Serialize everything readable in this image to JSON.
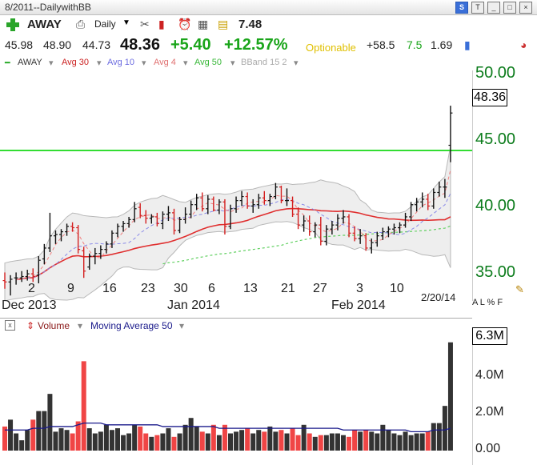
{
  "window": {
    "title": "8/2011--DailywithBB"
  },
  "toolbar": {
    "symbol": "AWAY",
    "period": "Daily",
    "small_value": "7.48"
  },
  "quote": {
    "open": "45.98",
    "high": "48.90",
    "low": "44.73",
    "last": "48.36",
    "change": "+5.40",
    "change_pct": "+12.57%",
    "optionable": "Optionable",
    "v1": "+58.5",
    "v2": "7.5",
    "v3": "1.69"
  },
  "legend": {
    "symbol": "AWAY",
    "avg30": "Avg 30",
    "avg10": "Avg 10",
    "avg4": "Avg 4",
    "avg50": "Avg 50",
    "bband": "BBand 15 2"
  },
  "colors": {
    "up": "#111111",
    "down": "#d42020",
    "vol_red": "#f04545",
    "avg30": "#e03030",
    "avg10": "#8a8ae8",
    "avg4": "#f08080",
    "avg50": "#60d060",
    "hline": "#33dd33",
    "axis_green": "#0c7c1c"
  },
  "price_axis": {
    "labels": [
      "50.00",
      "45.00",
      "40.00",
      "35.00"
    ],
    "current": "48.36",
    "hline": 45.6
  },
  "date_axis": {
    "days": [
      "2",
      "9",
      "16",
      "23",
      "30",
      "6",
      "13",
      "21",
      "27",
      "3",
      "10"
    ],
    "months": [
      "Dec 2013",
      "Jan 2014",
      "Feb 2014"
    ],
    "last_date": "2/20/14",
    "alpf": "A L % F"
  },
  "volume": {
    "label": "Volume",
    "ma_label": "Moving Average 50",
    "close_box": "x",
    "axis_labels": [
      "4.0M",
      "2.0M",
      "0.00"
    ],
    "current": "6.3M"
  },
  "chart_data": {
    "type": "candlestick",
    "x_axis": "date",
    "y_range": [
      34.5,
      51.5
    ],
    "bars": [
      {
        "o": 36.0,
        "h": 36.6,
        "l": 35.4,
        "c": 35.9
      },
      {
        "o": 35.9,
        "h": 36.4,
        "l": 34.9,
        "c": 36.1
      },
      {
        "o": 36.2,
        "h": 36.6,
        "l": 35.7,
        "c": 36.2
      },
      {
        "o": 36.2,
        "h": 36.7,
        "l": 35.9,
        "c": 36.3
      },
      {
        "o": 36.3,
        "h": 36.8,
        "l": 36.0,
        "c": 36.5
      },
      {
        "o": 36.5,
        "h": 36.9,
        "l": 35.9,
        "c": 36.3
      },
      {
        "o": 36.4,
        "h": 37.8,
        "l": 35.8,
        "c": 37.5
      },
      {
        "o": 37.6,
        "h": 38.7,
        "l": 37.2,
        "c": 38.4
      },
      {
        "o": 38.4,
        "h": 41.0,
        "l": 38.1,
        "c": 39.3
      },
      {
        "o": 39.3,
        "h": 39.7,
        "l": 38.7,
        "c": 39.4
      },
      {
        "o": 39.4,
        "h": 39.8,
        "l": 38.9,
        "c": 39.6
      },
      {
        "o": 39.6,
        "h": 40.2,
        "l": 39.3,
        "c": 40.0
      },
      {
        "o": 40.0,
        "h": 40.3,
        "l": 39.6,
        "c": 39.9
      },
      {
        "o": 39.9,
        "h": 40.1,
        "l": 38.0,
        "c": 38.3
      },
      {
        "o": 38.2,
        "h": 38.5,
        "l": 36.2,
        "c": 36.7
      },
      {
        "o": 37.0,
        "h": 38.0,
        "l": 36.8,
        "c": 37.8
      },
      {
        "o": 37.8,
        "h": 38.4,
        "l": 37.2,
        "c": 38.0
      },
      {
        "o": 38.0,
        "h": 38.6,
        "l": 37.6,
        "c": 38.3
      },
      {
        "o": 38.3,
        "h": 38.9,
        "l": 38.0,
        "c": 38.7
      },
      {
        "o": 38.7,
        "h": 39.7,
        "l": 38.4,
        "c": 39.5
      },
      {
        "o": 39.5,
        "h": 40.2,
        "l": 39.2,
        "c": 40.0
      },
      {
        "o": 40.0,
        "h": 40.4,
        "l": 39.6,
        "c": 40.2
      },
      {
        "o": 40.2,
        "h": 40.7,
        "l": 39.9,
        "c": 40.5
      },
      {
        "o": 40.5,
        "h": 41.8,
        "l": 40.3,
        "c": 41.3
      },
      {
        "o": 41.4,
        "h": 41.7,
        "l": 40.6,
        "c": 40.8
      },
      {
        "o": 40.8,
        "h": 41.2,
        "l": 40.2,
        "c": 40.6
      },
      {
        "o": 40.6,
        "h": 40.9,
        "l": 40.2,
        "c": 40.7
      },
      {
        "o": 40.7,
        "h": 41.0,
        "l": 40.0,
        "c": 40.2
      },
      {
        "o": 40.2,
        "h": 41.1,
        "l": 39.8,
        "c": 40.9
      },
      {
        "o": 40.9,
        "h": 41.5,
        "l": 40.4,
        "c": 41.0
      },
      {
        "o": 41.0,
        "h": 41.3,
        "l": 39.4,
        "c": 39.7
      },
      {
        "o": 39.7,
        "h": 40.7,
        "l": 39.5,
        "c": 40.5
      },
      {
        "o": 40.5,
        "h": 41.4,
        "l": 40.2,
        "c": 40.9
      },
      {
        "o": 40.9,
        "h": 41.9,
        "l": 40.6,
        "c": 41.6
      },
      {
        "o": 41.6,
        "h": 42.4,
        "l": 41.2,
        "c": 42.1
      },
      {
        "o": 42.1,
        "h": 42.5,
        "l": 41.1,
        "c": 41.3
      },
      {
        "o": 41.3,
        "h": 42.3,
        "l": 40.9,
        "c": 42.0
      },
      {
        "o": 42.0,
        "h": 42.2,
        "l": 41.1,
        "c": 41.2
      },
      {
        "o": 41.2,
        "h": 42.0,
        "l": 40.9,
        "c": 41.8
      },
      {
        "o": 41.8,
        "h": 42.0,
        "l": 39.4,
        "c": 40.0
      },
      {
        "o": 40.0,
        "h": 41.6,
        "l": 39.8,
        "c": 41.3
      },
      {
        "o": 41.3,
        "h": 42.2,
        "l": 41.0,
        "c": 41.9
      },
      {
        "o": 41.9,
        "h": 42.6,
        "l": 41.5,
        "c": 42.2
      },
      {
        "o": 42.2,
        "h": 42.5,
        "l": 41.3,
        "c": 41.5
      },
      {
        "o": 41.5,
        "h": 42.0,
        "l": 41.0,
        "c": 41.6
      },
      {
        "o": 41.6,
        "h": 42.4,
        "l": 41.3,
        "c": 42.1
      },
      {
        "o": 42.1,
        "h": 42.6,
        "l": 41.6,
        "c": 41.9
      },
      {
        "o": 41.9,
        "h": 42.4,
        "l": 41.5,
        "c": 42.2
      },
      {
        "o": 42.2,
        "h": 43.2,
        "l": 42.0,
        "c": 42.9
      },
      {
        "o": 42.9,
        "h": 43.0,
        "l": 41.7,
        "c": 41.9
      },
      {
        "o": 41.9,
        "h": 42.8,
        "l": 41.5,
        "c": 41.9
      },
      {
        "o": 41.9,
        "h": 42.2,
        "l": 40.7,
        "c": 40.9
      },
      {
        "o": 40.9,
        "h": 41.4,
        "l": 39.8,
        "c": 40.1
      },
      {
        "o": 40.1,
        "h": 40.8,
        "l": 39.6,
        "c": 40.4
      },
      {
        "o": 40.4,
        "h": 40.8,
        "l": 39.3,
        "c": 39.6
      },
      {
        "o": 39.6,
        "h": 40.3,
        "l": 39.2,
        "c": 40.1
      },
      {
        "o": 40.1,
        "h": 40.7,
        "l": 38.6,
        "c": 38.9
      },
      {
        "o": 38.9,
        "h": 40.1,
        "l": 38.6,
        "c": 39.8
      },
      {
        "o": 39.8,
        "h": 40.4,
        "l": 39.4,
        "c": 40.1
      },
      {
        "o": 40.1,
        "h": 40.9,
        "l": 39.7,
        "c": 40.6
      },
      {
        "o": 40.6,
        "h": 41.2,
        "l": 40.2,
        "c": 40.7
      },
      {
        "o": 40.7,
        "h": 40.9,
        "l": 39.2,
        "c": 39.5
      },
      {
        "o": 39.5,
        "h": 40.0,
        "l": 38.9,
        "c": 39.1
      },
      {
        "o": 39.1,
        "h": 39.8,
        "l": 38.7,
        "c": 39.3
      },
      {
        "o": 39.3,
        "h": 39.5,
        "l": 38.2,
        "c": 38.4
      },
      {
        "o": 38.4,
        "h": 39.1,
        "l": 38.0,
        "c": 38.8
      },
      {
        "o": 38.8,
        "h": 39.6,
        "l": 38.5,
        "c": 39.3
      },
      {
        "o": 39.3,
        "h": 39.9,
        "l": 39.0,
        "c": 39.6
      },
      {
        "o": 39.6,
        "h": 40.0,
        "l": 39.2,
        "c": 39.8
      },
      {
        "o": 39.8,
        "h": 40.2,
        "l": 39.4,
        "c": 39.9
      },
      {
        "o": 39.9,
        "h": 40.3,
        "l": 39.5,
        "c": 40.1
      },
      {
        "o": 40.1,
        "h": 41.0,
        "l": 39.9,
        "c": 40.7
      },
      {
        "o": 40.7,
        "h": 41.8,
        "l": 40.4,
        "c": 41.6
      },
      {
        "o": 41.6,
        "h": 42.1,
        "l": 41.1,
        "c": 41.8
      },
      {
        "o": 41.8,
        "h": 42.5,
        "l": 41.4,
        "c": 42.0
      },
      {
        "o": 42.0,
        "h": 42.4,
        "l": 41.2,
        "c": 41.5
      },
      {
        "o": 41.5,
        "h": 42.8,
        "l": 41.3,
        "c": 42.5
      },
      {
        "o": 42.5,
        "h": 43.3,
        "l": 42.2,
        "c": 42.9
      },
      {
        "o": 42.9,
        "h": 43.5,
        "l": 42.1,
        "c": 42.9
      },
      {
        "o": 45.98,
        "h": 48.9,
        "l": 44.73,
        "c": 48.36
      }
    ],
    "volume": [
      1.4,
      1.8,
      1.0,
      0.6,
      1.2,
      1.8,
      2.3,
      2.3,
      3.3,
      1.1,
      1.3,
      1.2,
      1.0,
      1.7,
      5.2,
      1.3,
      1.0,
      1.1,
      1.5,
      1.2,
      1.3,
      0.9,
      1.0,
      1.5,
      1.4,
      1.0,
      0.8,
      0.9,
      1.0,
      1.3,
      0.8,
      1.0,
      1.5,
      1.9,
      1.4,
      1.1,
      1.0,
      1.5,
      0.9,
      1.5,
      1.0,
      1.1,
      1.2,
      1.3,
      1.0,
      1.2,
      1.1,
      1.4,
      1.1,
      1.2,
      1.0,
      1.3,
      0.9,
      1.5,
      1.0,
      0.8,
      0.9,
      0.9,
      1.0,
      1.0,
      0.9,
      0.8,
      1.2,
      1.1,
      1.2,
      1.1,
      1.0,
      1.5,
      1.2,
      1.0,
      0.9,
      1.1,
      0.9,
      1.0,
      1.0,
      1.1,
      1.6,
      1.6,
      2.6,
      6.3
    ],
    "volume_ylim": [
      0,
      6.8
    ],
    "volume_ma": [
      1.2,
      1.2,
      1.2,
      1.2,
      1.2,
      1.3,
      1.3,
      1.3,
      1.4,
      1.4,
      1.4,
      1.4,
      1.4,
      1.5,
      1.6,
      1.6,
      1.6,
      1.6,
      1.5,
      1.5,
      1.5,
      1.5,
      1.5,
      1.5,
      1.5,
      1.5,
      1.5,
      1.5,
      1.4,
      1.4,
      1.4,
      1.4,
      1.4,
      1.4,
      1.4,
      1.4,
      1.4,
      1.4,
      1.3,
      1.3,
      1.3,
      1.3,
      1.3,
      1.3,
      1.3,
      1.3,
      1.3,
      1.3,
      1.3,
      1.3,
      1.3,
      1.3,
      1.3,
      1.3,
      1.3,
      1.3,
      1.3,
      1.3,
      1.3,
      1.3,
      1.2,
      1.2,
      1.2,
      1.2,
      1.2,
      1.2,
      1.2,
      1.2,
      1.2,
      1.2,
      1.2,
      1.2,
      1.1,
      1.1,
      1.1,
      1.1,
      1.2,
      1.2,
      1.2,
      1.3
    ]
  }
}
